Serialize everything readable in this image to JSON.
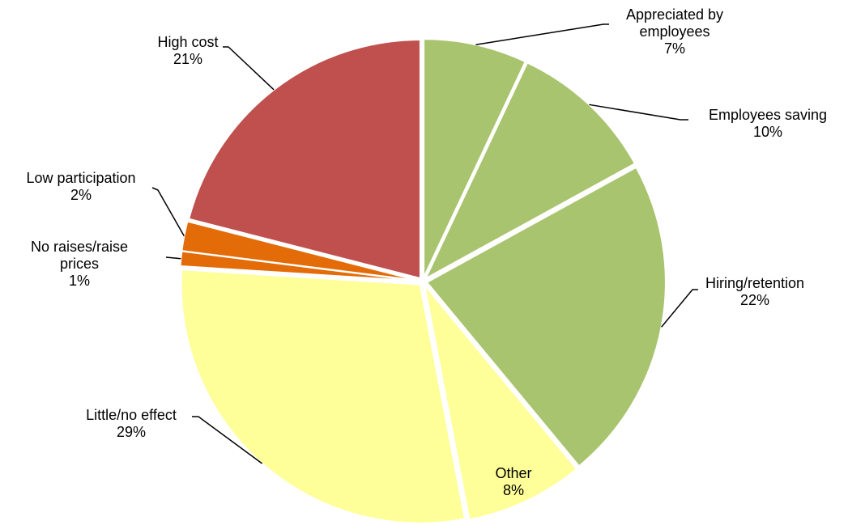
{
  "chart_data": {
    "type": "pie",
    "categories": [
      "Appreciated by employees",
      "Employees saving",
      "Hiring/retention",
      "Other",
      "Little/no effect",
      "No raises/raise prices",
      "Low participation",
      "High cost"
    ],
    "values": [
      7,
      10,
      22,
      8,
      29,
      1,
      2,
      21
    ],
    "value_labels": [
      "7%",
      "10%",
      "22%",
      "8%",
      "29%",
      "1%",
      "2%",
      "21%"
    ],
    "colors": [
      "#a9c46e",
      "#a9c46e",
      "#a9c46e",
      "#ffff99",
      "#ffff99",
      "#e36c09",
      "#e36c09",
      "#c0504d"
    ]
  }
}
